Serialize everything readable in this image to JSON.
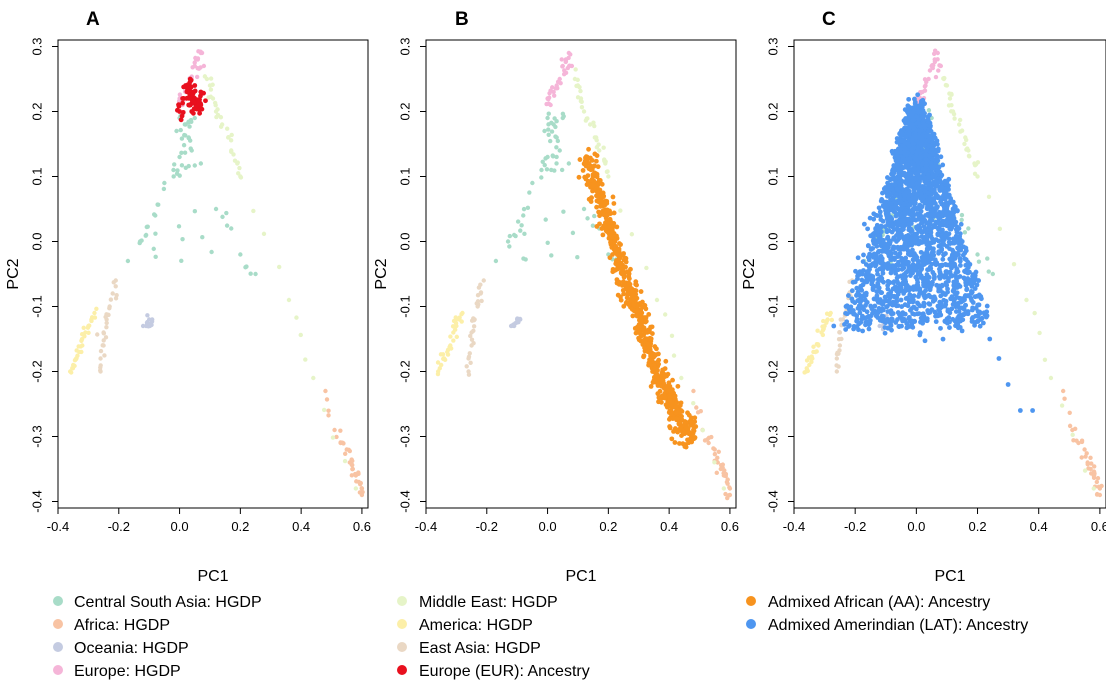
{
  "chart_data": [
    {
      "type": "scatter",
      "panel": "A",
      "title": "A",
      "xlabel": "PC1",
      "ylabel": "PC2",
      "xlim": [
        -0.4,
        0.62
      ],
      "ylim": [
        -0.41,
        0.31
      ],
      "xticks": [
        "-0.4",
        "-0.2",
        "0.0",
        "0.2",
        "0.4",
        "0.6"
      ],
      "yticks": [
        "-0.4",
        "-0.3",
        "-0.2",
        "-0.1",
        "0.0",
        "0.1",
        "0.2",
        "0.3"
      ],
      "grid": false,
      "overlay_series": "Europe (EUR): Ancestry"
    },
    {
      "type": "scatter",
      "panel": "B",
      "title": "B",
      "xlabel": "PC1",
      "ylabel": "PC2",
      "xlim": [
        -0.4,
        0.62
      ],
      "ylim": [
        -0.41,
        0.31
      ],
      "xticks": [
        "-0.4",
        "-0.2",
        "0.0",
        "0.2",
        "0.4",
        "0.6"
      ],
      "yticks": [
        "-0.4",
        "-0.3",
        "-0.2",
        "-0.1",
        "0.0",
        "0.1",
        "0.2",
        "0.3"
      ],
      "grid": false,
      "overlay_series": "Admixed African (AA): Ancestry"
    },
    {
      "type": "scatter",
      "panel": "C",
      "title": "C",
      "xlabel": "PC1",
      "ylabel": "PC2",
      "xlim": [
        -0.4,
        0.62
      ],
      "ylim": [
        -0.41,
        0.31
      ],
      "xticks": [
        "-0.4",
        "-0.2",
        "0.0",
        "0.2",
        "0.4",
        "0.6"
      ],
      "yticks": [
        "-0.4",
        "-0.3",
        "-0.2",
        "-0.1",
        "0.0",
        "0.1",
        "0.2",
        "0.3"
      ],
      "grid": false,
      "overlay_series": "Admixed Amerindian (LAT): Ancestry"
    }
  ],
  "reference_series": [
    {
      "name": "Central South Asia: HGDP",
      "color": "#a8dcc8",
      "points": [
        [
          0.0,
          0.19
        ],
        [
          0.02,
          0.18
        ],
        [
          0.05,
          0.19
        ],
        [
          0.03,
          0.16
        ],
        [
          -0.01,
          0.17
        ],
        [
          0.04,
          0.14
        ],
        [
          0.0,
          0.13
        ],
        [
          -0.02,
          0.11
        ],
        [
          0.07,
          0.12
        ],
        [
          -0.05,
          0.09
        ],
        [
          -0.08,
          0.04
        ],
        [
          -0.11,
          0.01
        ],
        [
          -0.13,
          0.0
        ],
        [
          0.12,
          0.05
        ],
        [
          0.17,
          0.02
        ],
        [
          -0.17,
          -0.03
        ],
        [
          0.2,
          -0.02
        ],
        [
          0.25,
          -0.05
        ]
      ]
    },
    {
      "name": "Africa: HGDP",
      "color": "#f8c3a3",
      "points": [
        [
          0.48,
          -0.23
        ],
        [
          0.51,
          -0.29
        ],
        [
          0.53,
          -0.31
        ],
        [
          0.55,
          -0.32
        ],
        [
          0.56,
          -0.34
        ],
        [
          0.57,
          -0.35
        ],
        [
          0.58,
          -0.36
        ],
        [
          0.59,
          -0.37
        ],
        [
          0.6,
          -0.38
        ],
        [
          0.6,
          -0.39
        ]
      ]
    },
    {
      "name": "Oceania: HGDP",
      "color": "#c4cbe1",
      "points": [
        [
          -0.1,
          -0.12
        ],
        [
          -0.11,
          -0.13
        ],
        [
          -0.09,
          -0.12
        ],
        [
          -0.12,
          -0.13
        ]
      ]
    },
    {
      "name": "Europe: HGDP",
      "color": "#f5b5d8",
      "points": [
        [
          0.07,
          0.29
        ],
        [
          0.06,
          0.28
        ],
        [
          0.05,
          0.27
        ],
        [
          0.08,
          0.27
        ],
        [
          0.04,
          0.25
        ],
        [
          0.03,
          0.24
        ],
        [
          0.02,
          0.23
        ],
        [
          0.0,
          0.22
        ],
        [
          0.01,
          0.21
        ]
      ]
    },
    {
      "name": "Middle East: HGDP",
      "color": "#e6f4c8",
      "points": [
        [
          0.09,
          0.25
        ],
        [
          0.1,
          0.24
        ],
        [
          0.11,
          0.22
        ],
        [
          0.12,
          0.2
        ],
        [
          0.14,
          0.18
        ],
        [
          0.16,
          0.16
        ],
        [
          0.17,
          0.14
        ],
        [
          0.19,
          0.12
        ],
        [
          0.2,
          0.1
        ],
        [
          0.36,
          -0.09
        ],
        [
          0.44,
          -0.21
        ],
        [
          0.58,
          -0.38
        ]
      ]
    },
    {
      "name": "America: HGDP",
      "color": "#fcefa8",
      "points": [
        [
          -0.36,
          -0.2
        ],
        [
          -0.35,
          -0.19
        ],
        [
          -0.34,
          -0.18
        ],
        [
          -0.33,
          -0.17
        ],
        [
          -0.32,
          -0.16
        ],
        [
          -0.31,
          -0.14
        ],
        [
          -0.3,
          -0.13
        ],
        [
          -0.29,
          -0.12
        ],
        [
          -0.28,
          -0.11
        ]
      ]
    },
    {
      "name": "East Asia: HGDP",
      "color": "#ead8c4",
      "points": [
        [
          -0.26,
          -0.2
        ],
        [
          -0.26,
          -0.18
        ],
        [
          -0.25,
          -0.16
        ],
        [
          -0.25,
          -0.14
        ],
        [
          -0.24,
          -0.12
        ],
        [
          -0.23,
          -0.1
        ],
        [
          -0.22,
          -0.08
        ],
        [
          -0.21,
          -0.06
        ]
      ]
    }
  ],
  "overlay_series": [
    {
      "name": "Europe (EUR): Ancestry",
      "color": "#e8101e",
      "points": [
        [
          0.02,
          0.24
        ],
        [
          0.03,
          0.23
        ],
        [
          0.04,
          0.23
        ],
        [
          0.05,
          0.22
        ],
        [
          0.06,
          0.21
        ],
        [
          0.07,
          0.21
        ],
        [
          0.03,
          0.21
        ],
        [
          0.05,
          0.24
        ],
        [
          0.01,
          0.22
        ],
        [
          0.0,
          0.2
        ],
        [
          0.07,
          0.23
        ],
        [
          0.04,
          0.2
        ]
      ]
    },
    {
      "name": "Admixed African (AA): Ancestry",
      "color": "#f7931e",
      "points": [
        [
          0.13,
          0.13
        ],
        [
          0.15,
          0.1
        ],
        [
          0.17,
          0.07
        ],
        [
          0.19,
          0.04
        ],
        [
          0.21,
          0.01
        ],
        [
          0.23,
          -0.02
        ],
        [
          0.25,
          -0.05
        ],
        [
          0.27,
          -0.08
        ],
        [
          0.29,
          -0.1
        ],
        [
          0.31,
          -0.13
        ],
        [
          0.33,
          -0.16
        ],
        [
          0.35,
          -0.19
        ],
        [
          0.37,
          -0.21
        ],
        [
          0.39,
          -0.23
        ],
        [
          0.41,
          -0.25
        ],
        [
          0.43,
          -0.27
        ],
        [
          0.45,
          -0.29
        ],
        [
          0.48,
          -0.29
        ]
      ]
    },
    {
      "name": "Admixed Amerindian (LAT): Ancestry",
      "color": "#4e96f0",
      "points": [
        [
          0.02,
          0.2
        ],
        [
          -0.02,
          0.15
        ],
        [
          0.05,
          0.15
        ],
        [
          -0.06,
          0.1
        ],
        [
          0.08,
          0.1
        ],
        [
          0.0,
          0.1
        ],
        [
          -0.1,
          0.05
        ],
        [
          0.12,
          0.05
        ],
        [
          0.03,
          0.04
        ],
        [
          -0.14,
          0.0
        ],
        [
          0.15,
          0.0
        ],
        [
          -0.03,
          0.0
        ],
        [
          -0.19,
          -0.05
        ],
        [
          0.17,
          -0.04
        ],
        [
          -0.23,
          -0.1
        ],
        [
          -0.27,
          -0.13
        ],
        [
          0.18,
          -0.08
        ],
        [
          0.21,
          -0.12
        ],
        [
          0.24,
          -0.15
        ],
        [
          0.27,
          -0.18
        ],
        [
          0.3,
          -0.22
        ],
        [
          0.34,
          -0.26
        ],
        [
          0.38,
          -0.26
        ],
        [
          -0.05,
          -0.09
        ],
        [
          0.06,
          -0.09
        ]
      ]
    }
  ],
  "legend": {
    "col1": [
      "Central South Asia: HGDP",
      "Africa: HGDP",
      "Oceania: HGDP",
      "Europe: HGDP"
    ],
    "col1_colors": [
      "#a8dcc8",
      "#f8c3a3",
      "#c4cbe1",
      "#f5b5d8"
    ],
    "col2": [
      "Middle East: HGDP",
      "America: HGDP",
      "East Asia: HGDP",
      "Europe (EUR): Ancestry"
    ],
    "col2_colors": [
      "#e6f4c8",
      "#fcefa8",
      "#ead8c4",
      "#e8101e"
    ],
    "col3": [
      "Admixed African (AA): Ancestry",
      "Admixed Amerindian (LAT): Ancestry"
    ],
    "col3_colors": [
      "#f7931e",
      "#4e96f0"
    ]
  }
}
